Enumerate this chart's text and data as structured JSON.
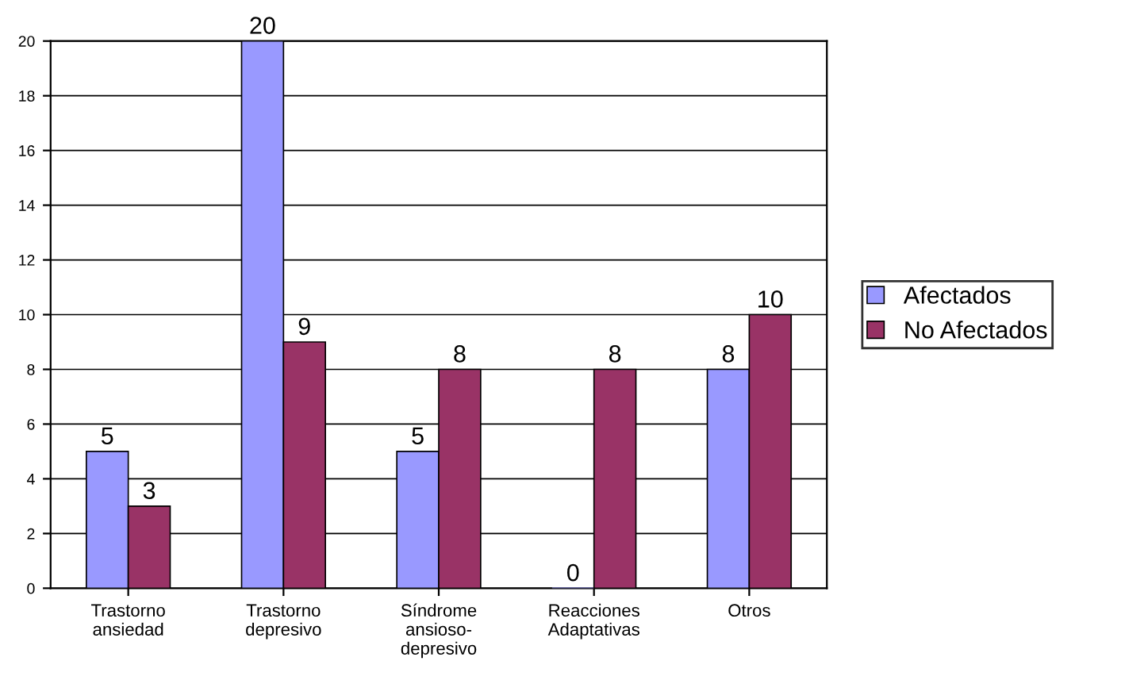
{
  "chart_data": {
    "type": "bar",
    "categories": [
      "Trastorno\nansiedad",
      "Trastorno\ndepresivo",
      "Síndrome\nansioso-\ndepresivo",
      "Reacciones\nAdaptativas",
      "Otros"
    ],
    "series": [
      {
        "name": "Afectados",
        "color": "#9999ff",
        "values": [
          5,
          20,
          5,
          0,
          8
        ]
      },
      {
        "name": "No Afectados",
        "color": "#993366",
        "values": [
          3,
          9,
          8,
          8,
          10
        ]
      }
    ],
    "ylim": [
      0,
      20
    ],
    "yticks": [
      0,
      2,
      4,
      6,
      8,
      10,
      12,
      14,
      16,
      18,
      20
    ],
    "grid": "y",
    "legend": "right",
    "data_labels": true
  }
}
